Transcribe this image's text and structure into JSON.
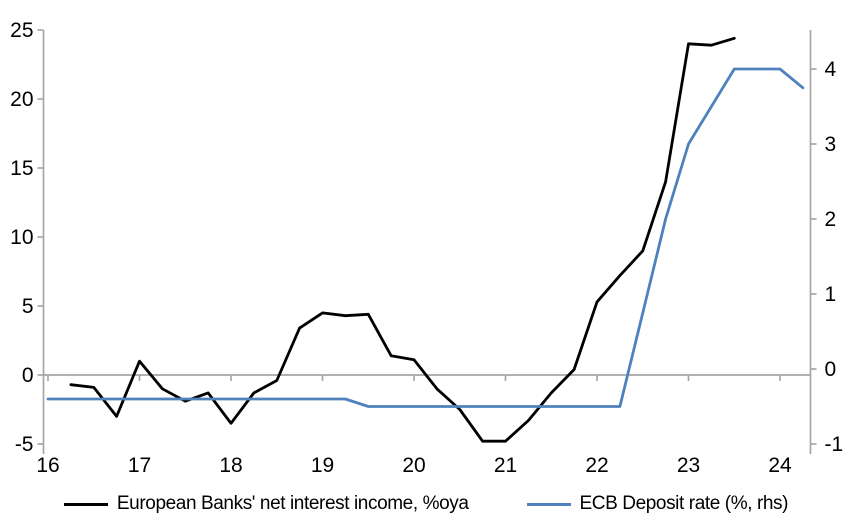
{
  "chart_data": {
    "type": "line",
    "title": "",
    "grid": "zero-line-only",
    "legend_position": "bottom",
    "style": {
      "axis_color": "#a6a6a6",
      "background": "#ffffff",
      "nii_line_color": "#000000",
      "ecb_line_color": "#4f81bd"
    },
    "x_axis": {
      "ticks": [
        16,
        17,
        18,
        19,
        20,
        21,
        22,
        23,
        24
      ],
      "unit": "year",
      "range": [
        15.95,
        24.35
      ]
    },
    "left_axis": {
      "ticks": [
        25,
        20,
        15,
        10,
        5,
        0,
        -5
      ],
      "range": [
        -5,
        25
      ]
    },
    "right_axis": {
      "ticks": [
        4,
        3,
        2,
        1,
        0,
        -1
      ],
      "range": [
        -1,
        4.5
      ]
    },
    "series": [
      {
        "name": "European Banks' net interest income, %oya",
        "axis": "left",
        "color": "#000000",
        "x": [
          16.25,
          16.5,
          16.75,
          17.0,
          17.25,
          17.5,
          17.75,
          18.0,
          18.25,
          18.5,
          18.75,
          19.0,
          19.25,
          19.5,
          19.75,
          20.0,
          20.25,
          20.5,
          20.75,
          21.0,
          21.25,
          21.5,
          21.75,
          22.0,
          22.25,
          22.5,
          22.75,
          23.0,
          23.25,
          23.5
        ],
        "values": [
          -0.7,
          -0.9,
          -3.0,
          1.0,
          -1.0,
          -1.9,
          -1.3,
          -3.5,
          -1.3,
          -0.4,
          3.4,
          4.5,
          4.3,
          4.4,
          1.4,
          1.1,
          -1.0,
          -2.5,
          -4.8,
          -4.8,
          -3.3,
          -1.3,
          0.4,
          5.3,
          7.2,
          9.0,
          14.0,
          24.0,
          23.9,
          24.4
        ]
      },
      {
        "name": "ECB Deposit rate (%, rhs)",
        "axis": "right",
        "color": "#4f81bd",
        "x": [
          16.0,
          16.25,
          16.5,
          16.75,
          17.0,
          17.25,
          17.5,
          17.75,
          18.0,
          18.25,
          18.5,
          18.75,
          19.0,
          19.25,
          19.5,
          19.75,
          20.0,
          20.25,
          20.5,
          20.75,
          21.0,
          21.25,
          21.5,
          21.75,
          22.0,
          22.25,
          22.5,
          22.75,
          23.0,
          23.25,
          23.5,
          23.75,
          24.0,
          24.25
        ],
        "values": [
          -0.4,
          -0.4,
          -0.4,
          -0.4,
          -0.4,
          -0.4,
          -0.4,
          -0.4,
          -0.4,
          -0.4,
          -0.4,
          -0.4,
          -0.4,
          -0.4,
          -0.5,
          -0.5,
          -0.5,
          -0.5,
          -0.5,
          -0.5,
          -0.5,
          -0.5,
          -0.5,
          -0.5,
          -0.5,
          -0.5,
          0.75,
          2.0,
          3.0,
          3.5,
          4.0,
          4.0,
          4.0,
          3.75
        ]
      }
    ]
  }
}
